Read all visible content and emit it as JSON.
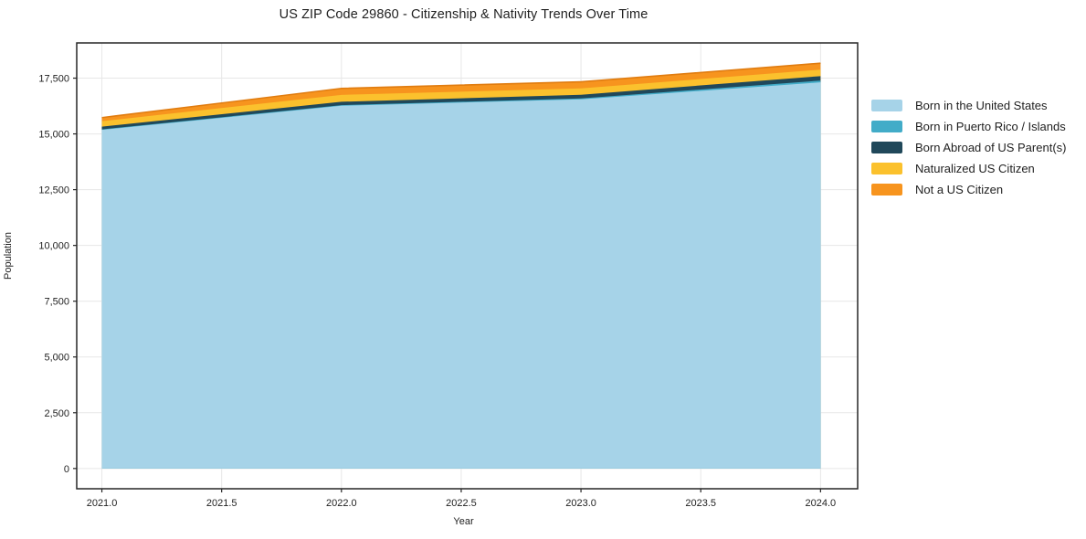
{
  "title": "US ZIP Code 29860 - Citizenship & Nativity Trends Over Time",
  "chart_data": {
    "type": "area",
    "stacked": true,
    "title": "US ZIP Code 29860 - Citizenship & Nativity Trends Over Time",
    "xlabel": "Year",
    "ylabel": "Population",
    "x": [
      2021,
      2022,
      2023,
      2024
    ],
    "series": [
      {
        "name": "Born in the United States",
        "color": "#A6D3E8",
        "edge": "#8FC4DF",
        "values": [
          15180,
          16260,
          16550,
          17310
        ]
      },
      {
        "name": "Born in Puerto Rico / Islands",
        "color": "#42ACC8",
        "edge": "#3B9DB7",
        "values": [
          25,
          30,
          40,
          80
        ]
      },
      {
        "name": "Born Abroad of US Parent(s)",
        "color": "#20485A",
        "edge": "#1B3E4E",
        "values": [
          120,
          150,
          165,
          200
        ]
      },
      {
        "name": "Naturalized US Citizen",
        "color": "#FBC12D",
        "edge": "#EFAE14",
        "values": [
          245,
          310,
          285,
          290
        ]
      },
      {
        "name": "Not a US Citizen",
        "color": "#F7941E",
        "edge": "#E07C10",
        "values": [
          160,
          290,
          295,
          290
        ]
      }
    ],
    "totals": [
      15730,
      17040,
      17335,
      18170
    ],
    "xlim": [
      2020.895,
      2024.155
    ],
    "ylim": [
      -908,
      19078
    ],
    "xticks": [
      2021.0,
      2021.5,
      2022.0,
      2022.5,
      2023.0,
      2023.5,
      2024.0
    ],
    "xtick_labels": [
      "2021.0",
      "2021.5",
      "2022.0",
      "2022.5",
      "2023.0",
      "2023.5",
      "2024.0"
    ],
    "yticks": [
      0,
      2500,
      5000,
      7500,
      10000,
      12500,
      15000,
      17500
    ],
    "ytick_labels": [
      "0",
      "2,500",
      "5,000",
      "7,500",
      "10,000",
      "12,500",
      "15,000",
      "17,500"
    ],
    "grid": true,
    "grid_color": "#E7E7E7",
    "spine_color": "#262626",
    "tick_color": "#262626",
    "legend_position": "right-outside"
  }
}
